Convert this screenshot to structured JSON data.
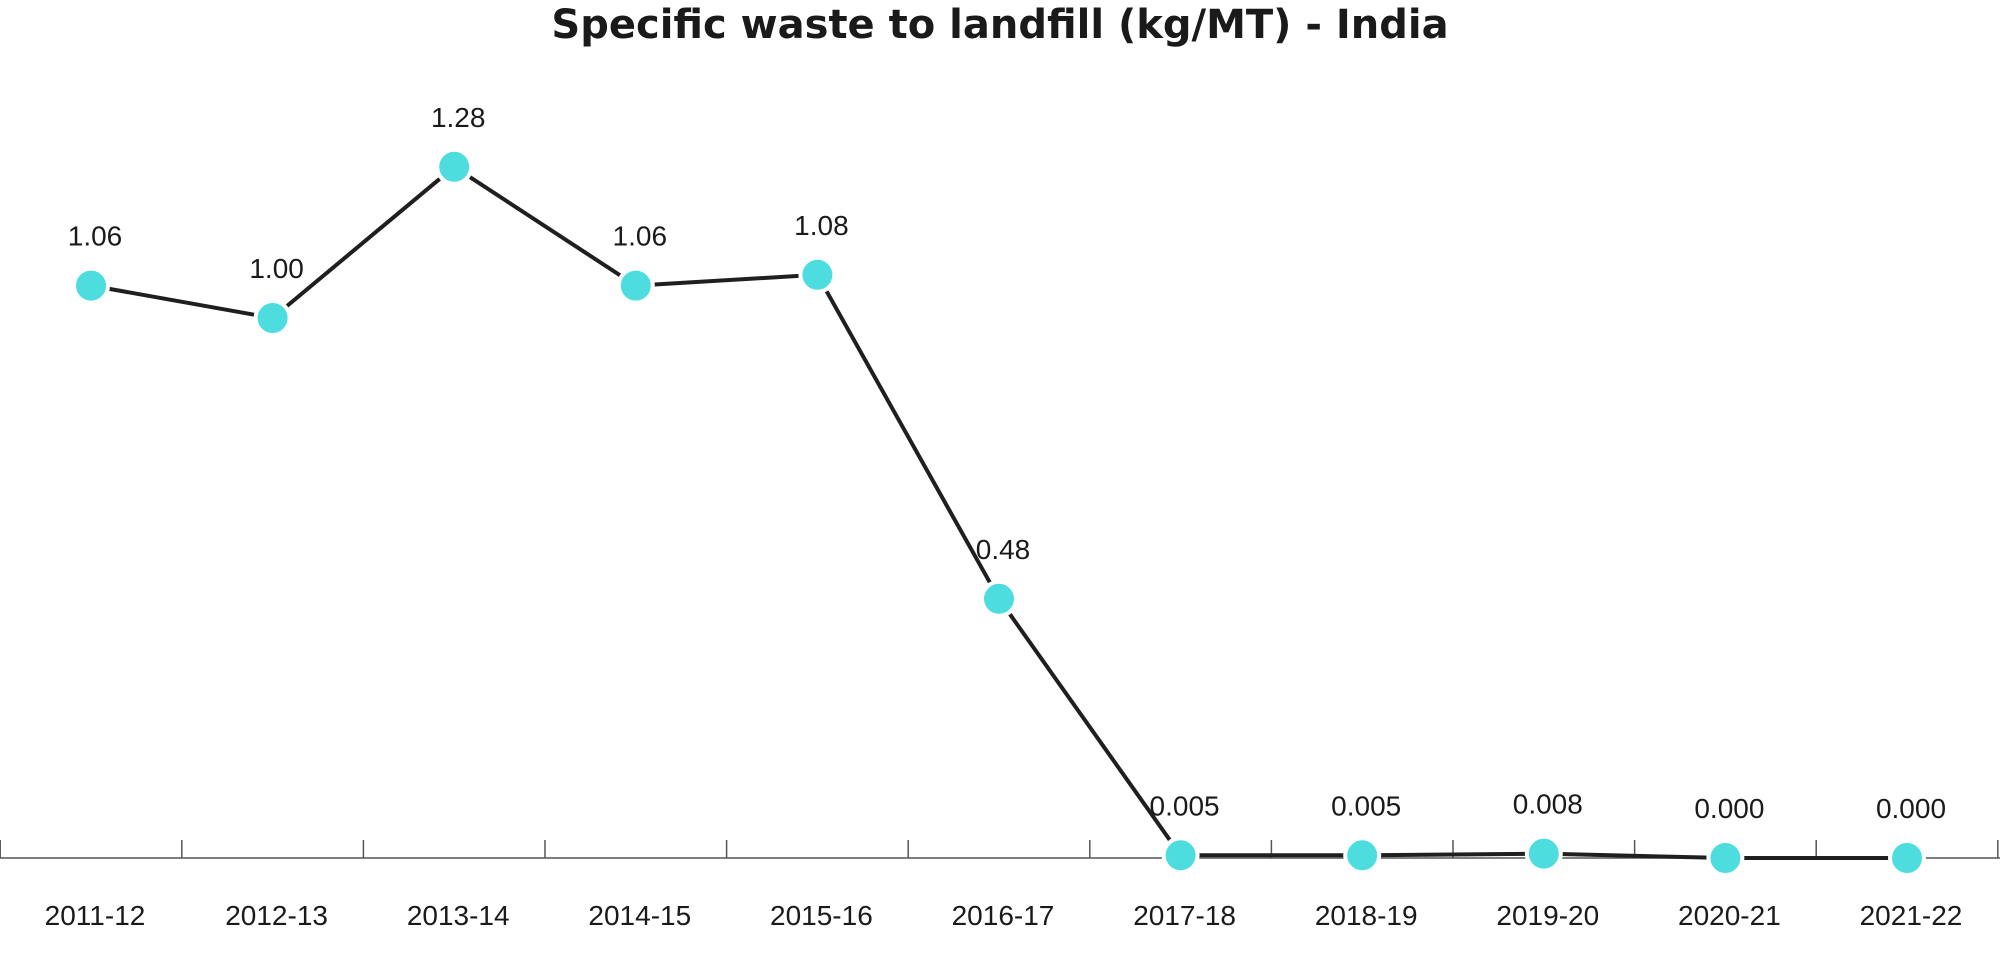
{
  "chart_data": {
    "type": "line",
    "title": "Specific waste to landfill (kg/MT) - India",
    "xlabel": "",
    "ylabel": "",
    "categories": [
      "2011-12",
      "2012-13",
      "2013-14",
      "2014-15",
      "2015-16",
      "2016-17",
      "2017-18",
      "2018-19",
      "2019-20",
      "2020-21",
      "2021-22"
    ],
    "series": [
      {
        "values": [
          1.06,
          1.0,
          1.28,
          1.06,
          1.08,
          0.48,
          0.005,
          0.005,
          0.008,
          0.0,
          0.0
        ],
        "labels": [
          "1.06",
          "1.00",
          "1.28",
          "1.06",
          "1.08",
          "0.48",
          "0.005",
          "0.005",
          "0.008",
          "0.000",
          "0.000"
        ]
      }
    ],
    "ylim": [
      0,
      1.3
    ],
    "grid": false,
    "legend": "none",
    "colors": {
      "marker": "#4DDDDF",
      "line": "#1f1f1f",
      "axis": "#555555"
    }
  }
}
